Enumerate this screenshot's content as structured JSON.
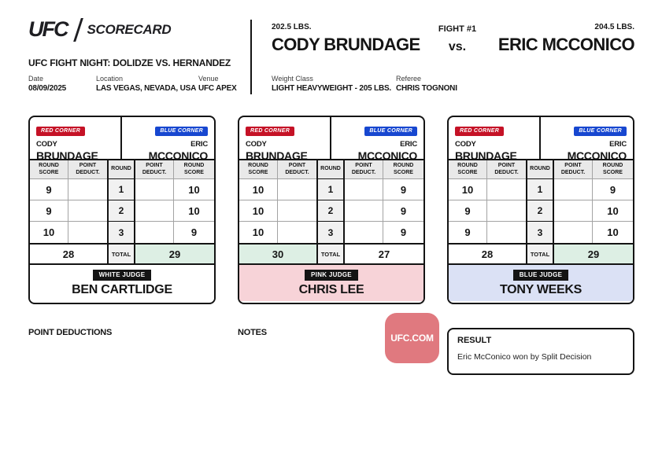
{
  "header": {
    "logo_ufc": "UFC",
    "logo_scorecard": "SCORECARD",
    "event_title": "UFC FIGHT NIGHT: DOLIDZE VS. HERNANDEZ",
    "date_label": "Date",
    "date_value": "08/09/2025",
    "location_label": "Location",
    "location_value": "LAS VEGAS, NEVADA, USA",
    "venue_label": "Venue",
    "venue_value": "UFC APEX",
    "red_weight": "202.5 LBS.",
    "red_name": "CODY BRUNDAGE",
    "blue_weight": "204.5 LBS.",
    "blue_name": "ERIC MCCONICO",
    "fight_number": "FIGHT #1",
    "vs": "vs.",
    "weight_class_label": "Weight Class",
    "weight_class_value": "LIGHT HEAVYWEIGHT - 205 LBS.",
    "referee_label": "Referee",
    "referee_value": "CHRIS TOGNONI"
  },
  "shared": {
    "red_corner": "RED CORNER",
    "blue_corner": "BLUE CORNER",
    "red_first": "CODY",
    "red_last": "BRUNDAGE",
    "blue_first": "ERIC",
    "blue_last": "MCCONICO",
    "columns": [
      "ROUND SCORE",
      "POINT DEDUCT.",
      "ROUND",
      "POINT DEDUCT.",
      "ROUND SCORE"
    ],
    "total_label": "TOTAL"
  },
  "scorecards": [
    {
      "judge_badge": "WHITE JUDGE",
      "judge_name": "BEN CARTLIDGE",
      "judge_theme": "white",
      "rounds": [
        {
          "round": "1",
          "red": "9",
          "red_deduct": "",
          "blue": "10",
          "blue_deduct": ""
        },
        {
          "round": "2",
          "red": "9",
          "red_deduct": "",
          "blue": "10",
          "blue_deduct": ""
        },
        {
          "round": "3",
          "red": "10",
          "red_deduct": "",
          "blue": "9",
          "blue_deduct": ""
        }
      ],
      "red_total": "28",
      "blue_total": "29",
      "winner": "blue"
    },
    {
      "judge_badge": "PINK JUDGE",
      "judge_name": "CHRIS LEE",
      "judge_theme": "pink",
      "rounds": [
        {
          "round": "1",
          "red": "10",
          "red_deduct": "",
          "blue": "9",
          "blue_deduct": ""
        },
        {
          "round": "2",
          "red": "10",
          "red_deduct": "",
          "blue": "9",
          "blue_deduct": ""
        },
        {
          "round": "3",
          "red": "10",
          "red_deduct": "",
          "blue": "9",
          "blue_deduct": ""
        }
      ],
      "red_total": "30",
      "blue_total": "27",
      "winner": "red"
    },
    {
      "judge_badge": "BLUE JUDGE",
      "judge_name": "TONY WEEKS",
      "judge_theme": "blue",
      "rounds": [
        {
          "round": "1",
          "red": "10",
          "red_deduct": "",
          "blue": "9",
          "blue_deduct": ""
        },
        {
          "round": "2",
          "red": "9",
          "red_deduct": "",
          "blue": "10",
          "blue_deduct": ""
        },
        {
          "round": "3",
          "red": "9",
          "red_deduct": "",
          "blue": "10",
          "blue_deduct": ""
        }
      ],
      "red_total": "28",
      "blue_total": "29",
      "winner": "blue"
    }
  ],
  "footer": {
    "point_deductions_label": "POINT DEDUCTIONS",
    "notes_label": "NOTES",
    "ufc_com": "UFC.COM",
    "result_label": "RESULT",
    "result_text": "Eric McConico won by Split Decision"
  },
  "colors": {
    "red_corner": "#c51226",
    "blue_corner": "#1747d0",
    "winner_highlight": "#ddefe4",
    "pink_judge_bg": "#f7d3d8",
    "blue_judge_bg": "#dbe1f5",
    "ufc_com_badge": "#e0797f",
    "header_cell_bg": "#e9e9e9",
    "border_black": "#141414"
  }
}
